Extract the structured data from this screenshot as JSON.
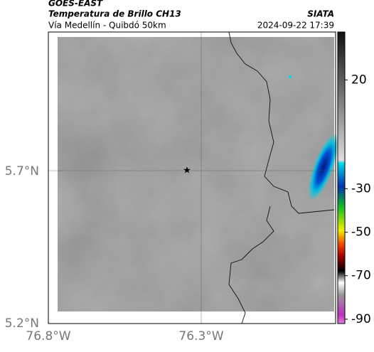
{
  "header": {
    "satellite": "GOES-EAST",
    "product": "Temperatura de Brillo CH13",
    "location": "Vía Medellín - Quibdó 50km",
    "source": "SIATA",
    "datetime": "2024-09-22 17:39"
  },
  "map": {
    "lat_labels": [
      "5.7°N",
      "5.2°N"
    ],
    "lon_labels": [
      "76.8°W",
      "76.3°W"
    ]
  },
  "colorbar": {
    "range": [
      42,
      -92
    ],
    "ticks": [
      20,
      -30,
      -50,
      -70,
      -90
    ]
  }
}
